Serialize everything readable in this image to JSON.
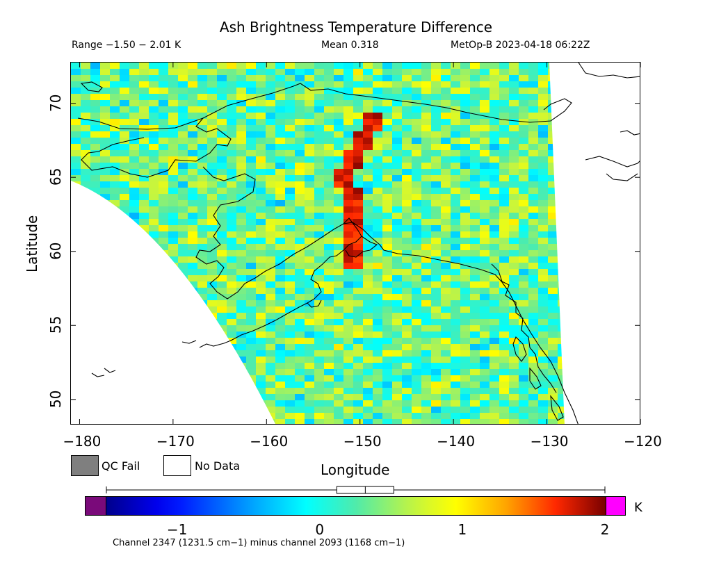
{
  "header": {
    "title": "Ash Brightness Temperature Difference",
    "range_text": "Range −1.50 − 2.01 K",
    "mean_text": "Mean 0.318",
    "satellite_text": "MetOp-B 2023-04-18 06:22Z"
  },
  "axes": {
    "xlabel": "Longitude",
    "ylabel": "Latitude",
    "xticks": [
      "−180",
      "−170",
      "−160",
      "−150",
      "−140",
      "−130",
      "−120"
    ],
    "yticks": [
      "50",
      "55",
      "60",
      "65",
      "70"
    ],
    "xlim": [
      -181,
      -120
    ],
    "ylim": [
      48.3,
      72.8
    ]
  },
  "legend": {
    "qc_fail_label": "QC Fail",
    "no_data_label": "No Data",
    "qc_fail_color": "#7f7f7f",
    "no_data_color": "#ffffff"
  },
  "colorbar": {
    "unit": "K",
    "ticks": [
      "−1",
      "0",
      "1",
      "2"
    ],
    "min": -1.5,
    "max": 2.0,
    "under_color": "#7a0a7a",
    "over_color": "#ff00ff",
    "footnote": "Channel 2347 (1231.5 cm−1) minus channel 2093 (1168 cm−1)",
    "boxplot": {
      "whisker_low": -1.5,
      "q1": 0.12,
      "median": 0.32,
      "q3": 0.52,
      "whisker_high": 2.01
    }
  },
  "chart_data": {
    "type": "heatmap",
    "title": "Ash Brightness Temperature Difference",
    "xlabel": "Longitude",
    "ylabel": "Latitude",
    "value_range_K": [
      -1.5,
      2.01
    ],
    "mean_K": 0.318,
    "notable_feature": "band of high values (~1.5–2 K) from about (−147.5, 68) south-west to (−149, 60.5)",
    "colors": {
      "very_low": "#00008b",
      "low": "#0000ff",
      "mid_low": "#00ffff",
      "mid": "#4de8a0",
      "mid_high": "#ffff00",
      "high": "#ff8000",
      "very_high": "#ff0000"
    }
  }
}
